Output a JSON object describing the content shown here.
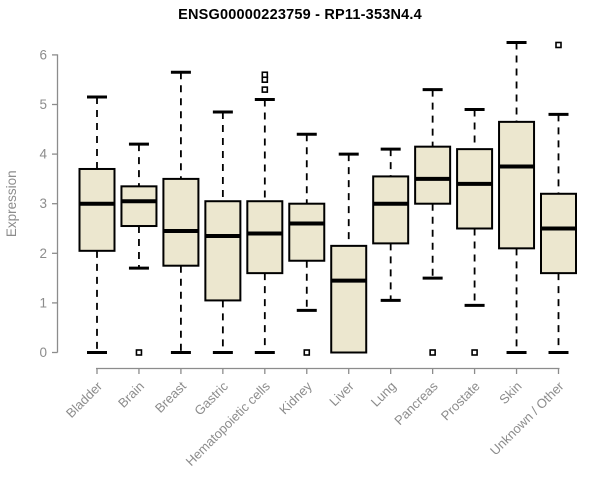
{
  "chart_data": {
    "type": "boxplot",
    "title": "ENSG00000223759 - RP11-353N4.4",
    "xlabel": "",
    "ylabel": "Expression",
    "ylim": [
      0,
      6
    ],
    "yticks": [
      0,
      1,
      2,
      3,
      4,
      5,
      6
    ],
    "grid": false,
    "legend": "none",
    "categories": [
      "Bladder",
      "Brain",
      "Breast",
      "Gastric",
      "Hematopoietic cells",
      "Kidney",
      "Liver",
      "Lung",
      "Pancreas",
      "Prostate",
      "Skin",
      "Unknown / Other"
    ],
    "series": [
      {
        "category": "Bladder",
        "whisker_low": 0.0,
        "q1": 2.05,
        "median": 3.0,
        "q3": 3.7,
        "whisker_high": 5.15,
        "outliers": []
      },
      {
        "category": "Brain",
        "whisker_low": 1.7,
        "q1": 2.55,
        "median": 3.05,
        "q3": 3.35,
        "whisker_high": 4.2,
        "outliers": [
          0.0
        ]
      },
      {
        "category": "Breast",
        "whisker_low": 0.0,
        "q1": 1.75,
        "median": 2.45,
        "q3": 3.5,
        "whisker_high": 5.65,
        "outliers": []
      },
      {
        "category": "Gastric",
        "whisker_low": 0.0,
        "q1": 1.05,
        "median": 2.35,
        "q3": 3.05,
        "whisker_high": 4.85,
        "outliers": []
      },
      {
        "category": "Hematopoietic cells",
        "whisker_low": 0.0,
        "q1": 1.6,
        "median": 2.4,
        "q3": 3.05,
        "whisker_high": 5.1,
        "outliers": [
          5.3,
          5.5,
          5.6
        ]
      },
      {
        "category": "Kidney",
        "whisker_low": 0.85,
        "q1": 1.85,
        "median": 2.6,
        "q3": 3.0,
        "whisker_high": 4.4,
        "outliers": [
          0.0
        ]
      },
      {
        "category": "Liver",
        "whisker_low": 0.0,
        "q1": 0.0,
        "median": 1.45,
        "q3": 2.15,
        "whisker_high": 4.0,
        "outliers": []
      },
      {
        "category": "Lung",
        "whisker_low": 1.05,
        "q1": 2.2,
        "median": 3.0,
        "q3": 3.55,
        "whisker_high": 4.1,
        "outliers": []
      },
      {
        "category": "Pancreas",
        "whisker_low": 1.5,
        "q1": 3.0,
        "median": 3.5,
        "q3": 4.15,
        "whisker_high": 5.3,
        "outliers": [
          0.0
        ]
      },
      {
        "category": "Prostate",
        "whisker_low": 0.95,
        "q1": 2.5,
        "median": 3.4,
        "q3": 4.1,
        "whisker_high": 4.9,
        "outliers": [
          0.0
        ]
      },
      {
        "category": "Skin",
        "whisker_low": 0.0,
        "q1": 2.1,
        "median": 3.75,
        "q3": 4.65,
        "whisker_high": 6.25,
        "outliers": []
      },
      {
        "category": "Unknown / Other",
        "whisker_low": 0.0,
        "q1": 1.6,
        "median": 2.5,
        "q3": 3.2,
        "whisker_high": 4.8,
        "outliers": [
          6.2
        ]
      }
    ],
    "colors": {
      "box_fill": "#ECE7CF",
      "box_stroke": "#000000",
      "median": "#000000",
      "whisker": "#000000",
      "outlier_stroke": "#000000",
      "outlier_fill": "#ffffff",
      "axis": "#8C8C8C",
      "tick_label": "#8C8C8C",
      "title": "#000000",
      "background": "#ffffff"
    }
  }
}
